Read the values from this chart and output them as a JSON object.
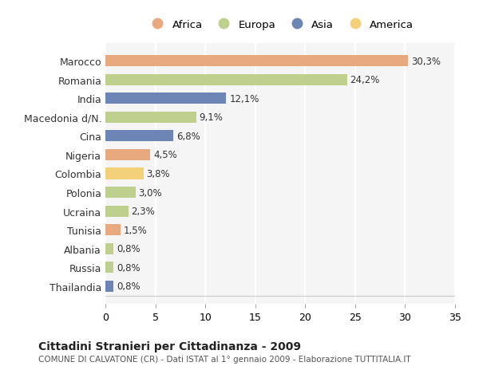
{
  "countries": [
    "Marocco",
    "Romania",
    "India",
    "Macedonia d/N.",
    "Cina",
    "Nigeria",
    "Colombia",
    "Polonia",
    "Ucraina",
    "Tunisia",
    "Albania",
    "Russia",
    "Thailandia"
  ],
  "values": [
    30.3,
    24.2,
    12.1,
    9.1,
    6.8,
    4.5,
    3.8,
    3.0,
    2.3,
    1.5,
    0.8,
    0.8,
    0.8
  ],
  "labels": [
    "30,3%",
    "24,2%",
    "12,1%",
    "9,1%",
    "6,8%",
    "4,5%",
    "3,8%",
    "3,0%",
    "2,3%",
    "1,5%",
    "0,8%",
    "0,8%",
    "0,8%"
  ],
  "colors": [
    "#E8A97E",
    "#BFCF8E",
    "#6C85B5",
    "#BFCF8E",
    "#6C85B5",
    "#E8A97E",
    "#F5D07A",
    "#BFCF8E",
    "#BFCF8E",
    "#E8A97E",
    "#BFCF8E",
    "#BFCF8E",
    "#6C85B5"
  ],
  "legend_labels": [
    "Africa",
    "Europa",
    "Asia",
    "America"
  ],
  "legend_colors": [
    "#E8A97E",
    "#BFCF8E",
    "#6C85B5",
    "#F5D07A"
  ],
  "xlim": [
    0,
    35
  ],
  "xticks": [
    0,
    5,
    10,
    15,
    20,
    25,
    30,
    35
  ],
  "title": "Cittadini Stranieri per Cittadinanza - 2009",
  "subtitle": "COMUNE DI CALVATONE (CR) - Dati ISTAT al 1° gennaio 2009 - Elaborazione TUTTITALIA.IT",
  "background_color": "#ffffff",
  "bar_background": "#f5f5f5",
  "grid_color": "#ffffff"
}
